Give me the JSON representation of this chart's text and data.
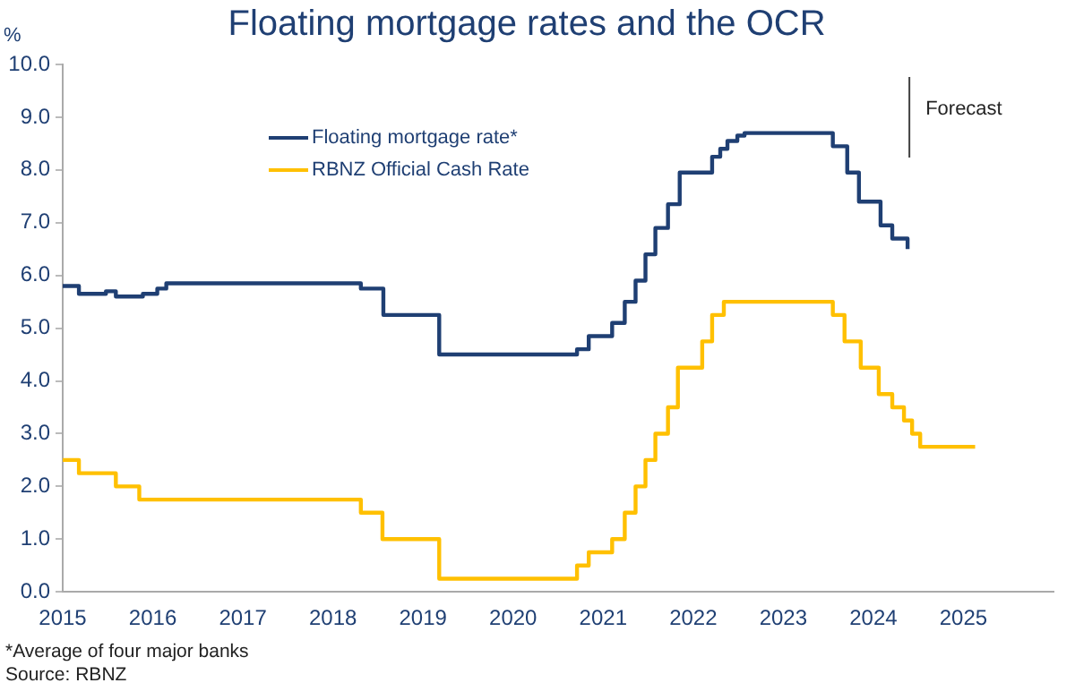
{
  "chart_data": {
    "type": "step",
    "title": "Floating mortgage rates and the OCR",
    "ylabel": "%",
    "series": [
      {
        "name": "Floating mortgage rate*",
        "color": "#1f3f73",
        "x": [
          2015,
          2015.18,
          2015.48,
          2015.59,
          2015.89,
          2016.05,
          2016.15,
          2016.42,
          2018.31,
          2018.56,
          2019.18,
          2020.71,
          2020.84,
          2021.1,
          2021.24,
          2021.36,
          2021.47,
          2021.58,
          2021.72,
          2021.85,
          2022.21,
          2022.3,
          2022.38,
          2022.49,
          2022.57,
          2023.55,
          2023.71,
          2023.84,
          2024.08,
          2024.21,
          2024.36,
          2024.38
        ],
        "values": [
          5.8,
          5.65,
          5.7,
          5.6,
          5.65,
          5.75,
          5.85,
          5.85,
          5.75,
          5.25,
          4.5,
          4.6,
          4.85,
          5.1,
          5.5,
          5.9,
          6.4,
          6.9,
          7.35,
          7.95,
          8.25,
          8.4,
          8.55,
          8.65,
          8.7,
          8.45,
          7.95,
          7.4,
          6.95,
          6.7,
          6.7,
          6.5
        ]
      },
      {
        "name": "RBNZ Official Cash Rate",
        "color": "#ffc000",
        "x": [
          2015,
          2015.18,
          2015.59,
          2015.85,
          2018.31,
          2018.55,
          2019.18,
          2020.71,
          2020.84,
          2021.1,
          2021.24,
          2021.36,
          2021.47,
          2021.58,
          2021.72,
          2021.83,
          2022.1,
          2022.21,
          2022.34,
          2023.55,
          2023.68,
          2023.86,
          2024.06,
          2024.21,
          2024.34,
          2024.43,
          2024.52,
          2025.13
        ],
        "values": [
          2.5,
          2.25,
          2.0,
          1.75,
          1.5,
          1.0,
          0.25,
          0.5,
          0.75,
          1.0,
          1.5,
          2.0,
          2.5,
          3.0,
          3.5,
          4.25,
          4.75,
          5.25,
          5.5,
          5.25,
          4.75,
          4.25,
          3.75,
          3.5,
          3.25,
          3.0,
          2.75,
          2.75
        ]
      }
    ],
    "xlim": [
      2015,
      2026
    ],
    "xticks": [
      2015,
      2016,
      2017,
      2018,
      2019,
      2020,
      2021,
      2022,
      2023,
      2024,
      2025
    ],
    "ylim": [
      0,
      10
    ],
    "yticks": [
      {
        "value": 0,
        "label": "0.0"
      },
      {
        "value": 1,
        "label": "1.0"
      },
      {
        "value": 2,
        "label": "2.0"
      },
      {
        "value": 3,
        "label": "3.0"
      },
      {
        "value": 4,
        "label": "4.0"
      },
      {
        "value": 5,
        "label": "5.0"
      },
      {
        "value": 6,
        "label": "6.0"
      },
      {
        "value": 7,
        "label": "7.0"
      },
      {
        "value": 8,
        "label": "8.0"
      },
      {
        "value": 9,
        "label": "9.0"
      },
      {
        "value": 10,
        "label": "10.0"
      }
    ],
    "ref_lines": [
      {
        "axis": "x",
        "value": 2024.4,
        "label": "Forecast",
        "color": "#404040"
      }
    ],
    "grid": false,
    "legend": "top left",
    "marker": "none",
    "line_style": "solid",
    "annotations": [
      "*Average of four major banks",
      "Source: RBNZ"
    ]
  }
}
